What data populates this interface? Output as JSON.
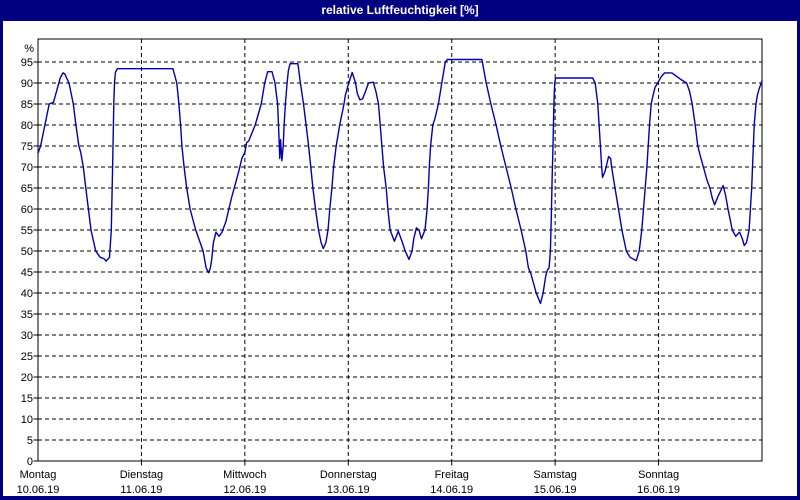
{
  "window": {
    "title": "relative Luftfeuchtigkeit [%]"
  },
  "colors": {
    "title_bar": "#000080",
    "window_border": "#000080",
    "plot_background": "#ffffff",
    "plot_frame": "#000000",
    "grid": "#000000",
    "axis_text": "#000000",
    "line": "#0000b0"
  },
  "chart_data": {
    "type": "line",
    "title": "relative Luftfeuchtigkeit [%]",
    "ylabel": "%",
    "xlabel": "",
    "legend": "none",
    "grid": "dashed horizontal every 5, dashed vertical at each day boundary",
    "ylim": [
      0,
      100
    ],
    "y_ticks": [
      0,
      5,
      10,
      15,
      20,
      25,
      30,
      35,
      40,
      45,
      50,
      55,
      60,
      65,
      70,
      75,
      80,
      85,
      90,
      95
    ],
    "y_unit_label": "%",
    "x_unit": "hours since Montag 00:00",
    "xlim": [
      0,
      168
    ],
    "x_day_labels": [
      {
        "name": "Montag",
        "date": "10.06.19",
        "hour": 0
      },
      {
        "name": "Dienstag",
        "date": "11.06.19",
        "hour": 24
      },
      {
        "name": "Mittwoch",
        "date": "12.06.19",
        "hour": 48
      },
      {
        "name": "Donnerstag",
        "date": "13.06.19",
        "hour": 72
      },
      {
        "name": "Freitag",
        "date": "14.06.19",
        "hour": 96
      },
      {
        "name": "Samstag",
        "date": "15.06.19",
        "hour": 120
      },
      {
        "name": "Sonntag",
        "date": "16.06.19",
        "hour": 144
      }
    ],
    "series": [
      {
        "name": "relative Luftfeuchtigkeit",
        "points": [
          [
            0,
            73.3
          ],
          [
            0.6,
            75
          ],
          [
            1.6,
            80
          ],
          [
            2.2,
            83
          ],
          [
            2.6,
            85
          ],
          [
            3.6,
            85.4
          ],
          [
            4.3,
            88
          ],
          [
            5.2,
            91.3
          ],
          [
            5.8,
            92.4
          ],
          [
            6.2,
            92.2
          ],
          [
            7.2,
            90
          ],
          [
            8.2,
            85
          ],
          [
            8.8,
            80
          ],
          [
            9.5,
            75
          ],
          [
            9.9,
            73.5
          ],
          [
            10.5,
            70
          ],
          [
            11.1,
            65
          ],
          [
            11.7,
            60
          ],
          [
            12.3,
            55
          ],
          [
            13.4,
            50
          ],
          [
            14.4,
            48.5
          ],
          [
            15.3,
            48.2
          ],
          [
            15.8,
            47.6
          ],
          [
            16.6,
            48.5
          ],
          [
            17.0,
            55
          ],
          [
            17.3,
            70
          ],
          [
            17.6,
            85
          ],
          [
            17.75,
            90
          ],
          [
            17.95,
            92.5
          ],
          [
            18.4,
            93.4
          ],
          [
            31.3,
            93.4
          ],
          [
            32.2,
            90
          ],
          [
            32.7,
            85
          ],
          [
            33.1,
            80
          ],
          [
            33.4,
            75
          ],
          [
            33.9,
            70
          ],
          [
            34.5,
            65
          ],
          [
            35.3,
            60
          ],
          [
            36.6,
            55
          ],
          [
            38.3,
            50
          ],
          [
            39.0,
            46
          ],
          [
            39.6,
            44.8
          ],
          [
            40.0,
            46
          ],
          [
            40.3,
            48
          ],
          [
            40.7,
            52
          ],
          [
            41.3,
            54.5
          ],
          [
            42.0,
            53.5
          ],
          [
            42.7,
            54.5
          ],
          [
            43.6,
            57
          ],
          [
            44.3,
            60
          ],
          [
            45.0,
            63
          ],
          [
            45.8,
            66
          ],
          [
            46.6,
            69
          ],
          [
            47.3,
            72
          ],
          [
            48.0,
            73.5
          ],
          [
            48.4,
            75.8
          ],
          [
            48.9,
            76.2
          ],
          [
            50.4,
            80
          ],
          [
            51.8,
            85
          ],
          [
            52.6,
            90
          ],
          [
            53.3,
            92.7
          ],
          [
            54.3,
            92.7
          ],
          [
            55.0,
            90
          ],
          [
            55.6,
            85
          ],
          [
            55.8,
            80
          ],
          [
            56.1,
            72
          ],
          [
            56.3,
            76.5
          ],
          [
            56.6,
            71.5
          ],
          [
            56.9,
            75
          ],
          [
            57.1,
            80
          ],
          [
            57.4,
            85
          ],
          [
            57.8,
            90
          ],
          [
            58.1,
            93
          ],
          [
            58.5,
            94.6
          ],
          [
            60.3,
            94.6
          ],
          [
            60.9,
            90
          ],
          [
            61.6,
            85
          ],
          [
            62.2,
            80
          ],
          [
            62.8,
            75
          ],
          [
            63.3,
            70
          ],
          [
            63.8,
            65
          ],
          [
            64.4,
            60
          ],
          [
            65.1,
            55
          ],
          [
            65.7,
            52
          ],
          [
            66.2,
            50.6
          ],
          [
            66.8,
            52
          ],
          [
            67.3,
            55
          ],
          [
            67.7,
            60
          ],
          [
            68.2,
            65
          ],
          [
            68.6,
            70
          ],
          [
            69.2,
            75
          ],
          [
            70.0,
            80
          ],
          [
            71.0,
            85
          ],
          [
            71.3,
            87
          ],
          [
            72.1,
            90
          ],
          [
            72.9,
            92.5
          ],
          [
            73.7,
            90
          ],
          [
            74.1,
            87.5
          ],
          [
            74.7,
            86
          ],
          [
            75.3,
            86.2
          ],
          [
            76.0,
            88
          ],
          [
            76.7,
            90
          ],
          [
            77.8,
            90.2
          ],
          [
            78.4,
            88
          ],
          [
            79.0,
            85
          ],
          [
            79.4,
            80
          ],
          [
            79.8,
            75
          ],
          [
            80.2,
            70
          ],
          [
            80.5,
            67.5
          ],
          [
            80.8,
            65
          ],
          [
            81.2,
            60
          ],
          [
            81.7,
            55
          ],
          [
            82.7,
            52.3
          ],
          [
            83.6,
            54.7
          ],
          [
            84.4,
            52.5
          ],
          [
            85.2,
            50
          ],
          [
            86.1,
            48
          ],
          [
            86.8,
            50
          ],
          [
            87.2,
            53
          ],
          [
            87.8,
            55.5
          ],
          [
            88.4,
            55
          ],
          [
            89.0,
            52.9
          ],
          [
            89.8,
            55
          ],
          [
            90.3,
            60
          ],
          [
            90.6,
            65
          ],
          [
            90.8,
            70
          ],
          [
            91.1,
            75
          ],
          [
            91.6,
            80
          ],
          [
            92.1,
            81.5
          ],
          [
            92.9,
            85
          ],
          [
            93.7,
            90
          ],
          [
            94.5,
            95
          ],
          [
            95.0,
            95.6
          ],
          [
            103.0,
            95.6
          ],
          [
            104.0,
            90
          ],
          [
            105.1,
            85
          ],
          [
            106.3,
            80
          ],
          [
            107.4,
            75
          ],
          [
            108.6,
            70
          ],
          [
            109.8,
            65
          ],
          [
            110.9,
            60
          ],
          [
            112.1,
            55
          ],
          [
            113.2,
            50
          ],
          [
            113.8,
            46
          ],
          [
            114.4,
            44.5
          ],
          [
            115.6,
            40
          ],
          [
            116.6,
            37.5
          ],
          [
            117.2,
            40
          ],
          [
            117.8,
            44
          ],
          [
            118.2,
            45.5
          ],
          [
            118.6,
            46
          ],
          [
            118.9,
            50
          ],
          [
            119.1,
            58
          ],
          [
            119.3,
            67
          ],
          [
            119.5,
            75
          ],
          [
            119.7,
            85
          ],
          [
            119.9,
            90
          ],
          [
            120.1,
            91.2
          ],
          [
            128.7,
            91.2
          ],
          [
            129.3,
            90
          ],
          [
            129.9,
            85
          ],
          [
            130.2,
            80
          ],
          [
            130.5,
            75
          ],
          [
            130.8,
            70
          ],
          [
            131.0,
            67.5
          ],
          [
            131.6,
            69
          ],
          [
            132.4,
            72.5
          ],
          [
            132.9,
            72
          ],
          [
            133.1,
            70
          ],
          [
            133.9,
            65
          ],
          [
            134.7,
            60
          ],
          [
            135.5,
            55
          ],
          [
            136.5,
            50
          ],
          [
            137.4,
            48.5
          ],
          [
            138.8,
            47.7
          ],
          [
            139.5,
            50
          ],
          [
            140.1,
            55
          ],
          [
            140.5,
            60
          ],
          [
            140.9,
            65
          ],
          [
            141.3,
            70
          ],
          [
            141.6,
            75
          ],
          [
            141.9,
            80
          ],
          [
            142.3,
            85
          ],
          [
            142.7,
            87
          ],
          [
            143.2,
            89
          ],
          [
            143.8,
            90
          ],
          [
            144.6,
            91.5
          ],
          [
            145.4,
            92.4
          ],
          [
            147.1,
            92.4
          ],
          [
            148.3,
            91.5
          ],
          [
            149.2,
            90.8
          ],
          [
            150.5,
            90
          ],
          [
            151.2,
            88
          ],
          [
            151.8,
            85
          ],
          [
            152.5,
            80
          ],
          [
            153.1,
            75
          ],
          [
            153.6,
            73
          ],
          [
            154.4,
            70
          ],
          [
            155.2,
            67
          ],
          [
            155.9,
            65
          ],
          [
            156.5,
            62.5
          ],
          [
            157.0,
            61
          ],
          [
            157.8,
            63
          ],
          [
            159.0,
            65.6
          ],
          [
            159.6,
            63
          ],
          [
            160.1,
            60
          ],
          [
            161.1,
            55
          ],
          [
            161.9,
            53.5
          ],
          [
            162.8,
            54.5
          ],
          [
            163.4,
            53
          ],
          [
            163.9,
            51.3
          ],
          [
            164.4,
            52
          ],
          [
            165.0,
            55
          ],
          [
            165.3,
            60
          ],
          [
            165.6,
            65
          ],
          [
            165.8,
            70
          ],
          [
            166.0,
            75
          ],
          [
            166.2,
            80
          ],
          [
            166.6,
            85
          ],
          [
            166.9,
            87
          ],
          [
            167.3,
            88.5
          ],
          [
            168.0,
            90.5
          ]
        ]
      }
    ]
  }
}
